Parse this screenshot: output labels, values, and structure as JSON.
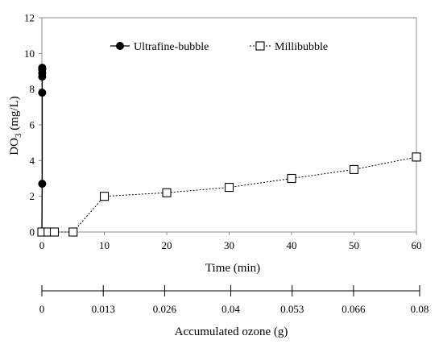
{
  "chart_data": {
    "type": "scatter",
    "xlabel": "Time (min)",
    "ylabel_main": "DO",
    "ylabel_sub": "3",
    "ylabel_unit": " (mg/L)",
    "xlim": [
      0,
      60
    ],
    "ylim": [
      0,
      12
    ],
    "x_ticks": [
      "0",
      "10",
      "20",
      "30",
      "40",
      "50",
      "60"
    ],
    "y_ticks": [
      "0",
      "2",
      "4",
      "6",
      "8",
      "10",
      "12"
    ],
    "grid": false,
    "legend_position": "top",
    "secondary_axis": {
      "label": "Accumulated ozone (g)",
      "ticks": [
        "0",
        "0.013",
        "0.026",
        "0.04",
        "0.053",
        "0.066",
        "0.08"
      ],
      "range": [
        0,
        0.08
      ]
    },
    "series": [
      {
        "name": "Ultrafine-bubble",
        "marker": "filled-circle",
        "line": "solid",
        "color": "#000000",
        "points": [
          [
            0,
            0
          ],
          [
            0,
            0
          ],
          [
            0,
            0
          ],
          [
            0.05,
            2.7
          ],
          [
            0.05,
            7.8
          ],
          [
            0.05,
            8.7
          ],
          [
            0.05,
            8.9
          ],
          [
            0.05,
            9.1
          ],
          [
            0.05,
            9.2
          ]
        ]
      },
      {
        "name": "Millibubble",
        "marker": "open-square",
        "line": "dotted",
        "color": "#000000",
        "points": [
          [
            0,
            0
          ],
          [
            1,
            0
          ],
          [
            2,
            0
          ],
          [
            5,
            0
          ],
          [
            10,
            2.0
          ],
          [
            20,
            2.2
          ],
          [
            30,
            2.5
          ],
          [
            40,
            3.0
          ],
          [
            50,
            3.5
          ],
          [
            60,
            4.2
          ]
        ]
      }
    ]
  }
}
